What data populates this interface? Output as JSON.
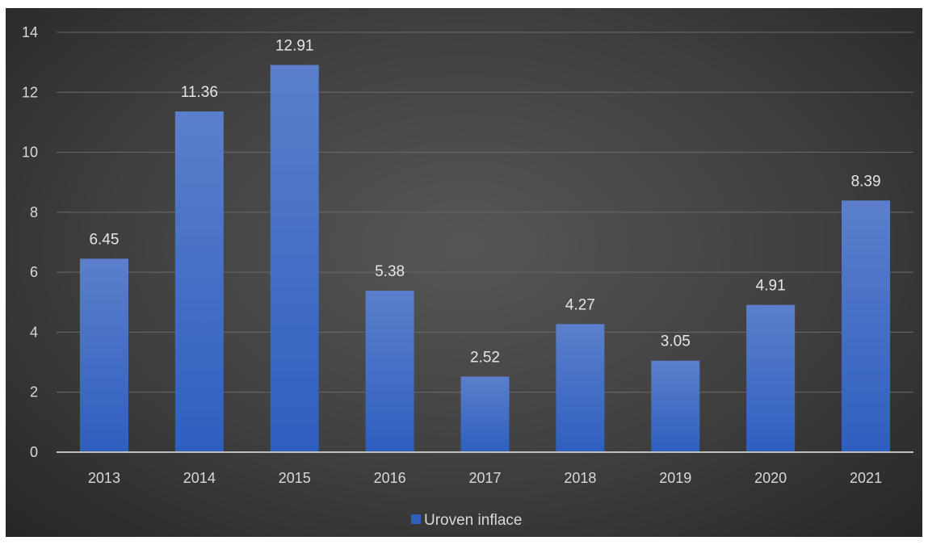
{
  "chart_data": {
    "type": "bar",
    "categories": [
      "2013",
      "2014",
      "2015",
      "2016",
      "2017",
      "2018",
      "2019",
      "2020",
      "2021"
    ],
    "series": [
      {
        "name": "Uroven inflace",
        "values": [
          6.45,
          11.36,
          12.91,
          5.38,
          2.52,
          4.27,
          3.05,
          4.91,
          8.39
        ]
      }
    ],
    "data_labels": [
      "6.45",
      "11.36",
      "12.91",
      "5.38",
      "2.52",
      "4.27",
      "3.05",
      "4.91",
      "8.39"
    ],
    "y_ticks": [
      "0",
      "2",
      "4",
      "6",
      "8",
      "10",
      "12",
      "14"
    ],
    "ylim": [
      0,
      14
    ],
    "grid": true,
    "legend_position": "bottom",
    "colors": {
      "bar_top": "#5b7fcb",
      "bar_bottom": "#2e5fbf",
      "grid": "#6a6a6a",
      "axis": "#bfbfbf"
    }
  }
}
